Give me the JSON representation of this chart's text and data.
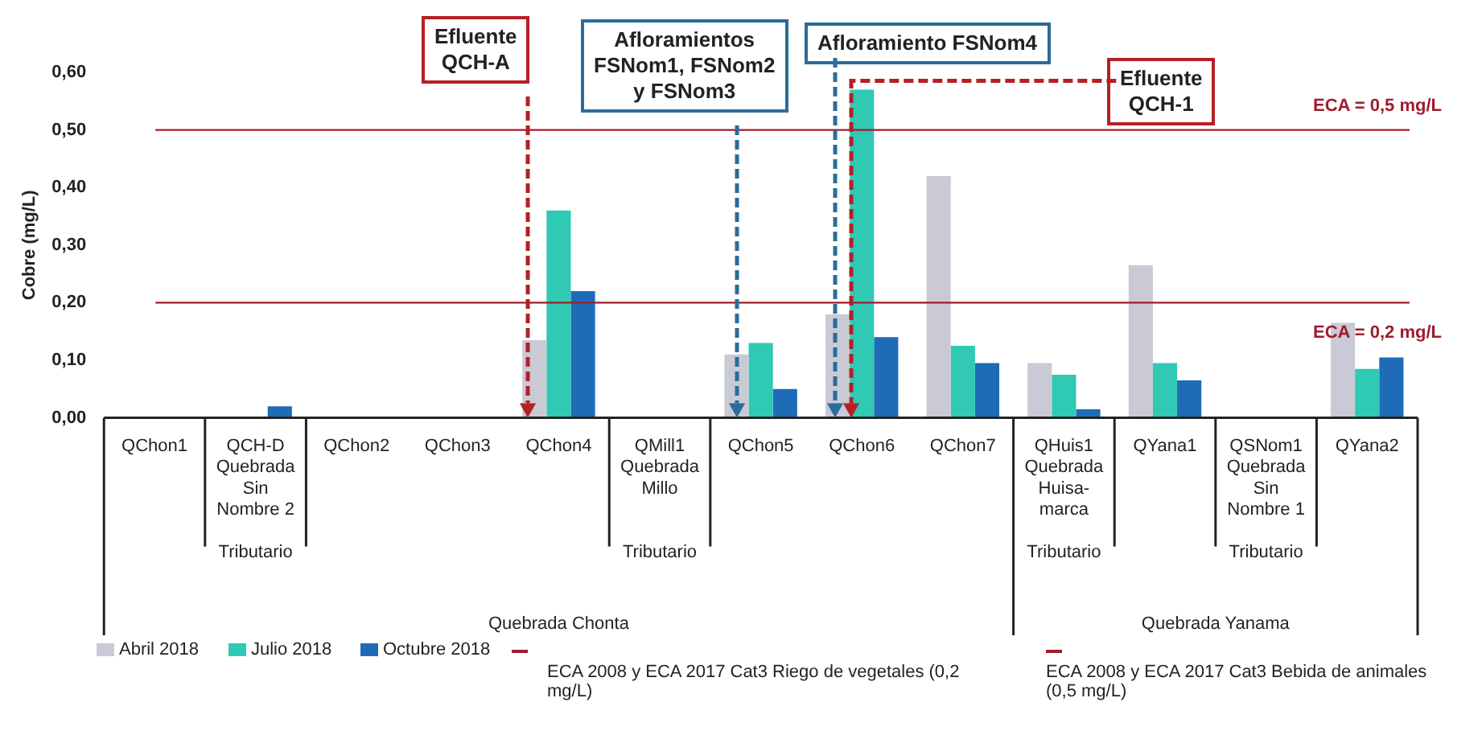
{
  "chart_data": {
    "type": "bar",
    "ylabel": "Cobre (mg/L)",
    "categories": [
      "QChon1",
      "QCH-D\nQuebrada\nSin\nNombre 2\n\nTributario",
      "QChon2",
      "QChon3",
      "QChon4",
      "QMill1\nQuebrada\nMillo\n\n\nTributario",
      "QChon5",
      "QChon6",
      "QChon7",
      "QHuis1\nQuebrada\nHuisa-\nmarca\n\nTributario",
      "QYana1",
      "QSNom1\nQuebrada\nSin\nNombre 1\n\nTributario",
      "QYana2"
    ],
    "series": [
      {
        "name": "Abril 2018",
        "color": "#c9cad6",
        "values": [
          0,
          0,
          0,
          0,
          0.135,
          0,
          0.11,
          0.18,
          0.42,
          0.095,
          0.265,
          0,
          0.165
        ]
      },
      {
        "name": "Julio 2018",
        "color": "#2fc9b4",
        "values": [
          0,
          0,
          0,
          0,
          0.36,
          0,
          0.13,
          0.57,
          0.125,
          0.075,
          0.095,
          0,
          0.085
        ]
      },
      {
        "name": "Octubre 2018",
        "color": "#1e6cb8",
        "values": [
          0,
          0.02,
          null,
          null,
          0.22,
          0,
          0.05,
          0.14,
          0.095,
          0.015,
          0.065,
          0,
          0.105
        ]
      }
    ],
    "ylim": [
      0,
      0.6
    ],
    "yticks": [
      {
        "value": 0,
        "label": "0,00"
      },
      {
        "value": 0.1,
        "label": "0,10"
      },
      {
        "value": 0.2,
        "label": "0,20"
      },
      {
        "value": 0.3,
        "label": "0,30"
      },
      {
        "value": 0.4,
        "label": "0,40"
      },
      {
        "value": 0.5,
        "label": "0,50"
      },
      {
        "value": 0.6,
        "label": "0,60"
      }
    ],
    "ref_lines": [
      {
        "axis": "y",
        "value": 0.2,
        "label": "ECA = 0,2 mg/L",
        "color": "#a01c2c"
      },
      {
        "axis": "y",
        "value": 0.5,
        "label": "ECA = 0,5 mg/L",
        "color": "#a01c2c"
      }
    ],
    "annotations": [
      "Efluente\nQCH-A",
      "Afloramientos\nFSNom1, FSNom2\ny FSNom3",
      "Afloramiento FSNom4",
      "Efluente\nQCH-1",
      "Quebrada Chonta",
      "Quebrada Yanama",
      "ECA 2008 y ECA 2017 Cat3 Riego de vegetales (0,2 mg/L)",
      "ECA 2008 y ECA 2017 Cat3 Bebida de animales (0,5 mg/L)"
    ],
    "grid": false,
    "legend": "bottom"
  }
}
